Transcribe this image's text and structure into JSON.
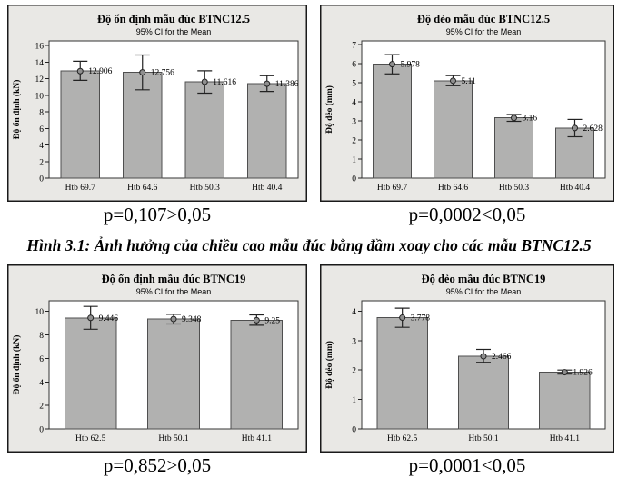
{
  "figure_caption": "Hình 3.1: Ảnh hưởng của chiều cao mẫu đúc bằng đầm xoay cho các mẫu BTNC12.5",
  "colors": {
    "panel_bg": "#e9e8e5",
    "panel_border": "#1a1a1a",
    "plot_bg": "#ffffff",
    "plot_border": "#333333",
    "bar_fill": "#b1b1b0",
    "bar_border": "#4f4f4f",
    "error_bar": "#222222",
    "marker_fill": "#8f8f8f",
    "text": "#000000"
  },
  "chart_data": [
    {
      "type": "bar",
      "title": "Độ ổn định mẫu đúc BTNC12.5",
      "subtitle": "95% CI for the Mean",
      "ylabel": "Độ ổn định (kN)",
      "xlabel": "",
      "categories": [
        "Htb 69.7",
        "Htb 64.6",
        "Htb 50.3",
        "Htb 40.4"
      ],
      "values": [
        12.906,
        12.756,
        11.616,
        11.386
      ],
      "value_labels": [
        "12.906",
        "12.756",
        "11.616",
        "11.386"
      ],
      "error_bars": "95% CI",
      "ci_low": [
        11.8,
        10.65,
        10.25,
        10.45
      ],
      "ci_high": [
        14.1,
        14.85,
        12.95,
        12.35
      ],
      "yticks": [
        0,
        2,
        4,
        6,
        8,
        10,
        12,
        14,
        16
      ],
      "ylim": [
        0,
        16.55
      ],
      "grid": false,
      "legend": "none",
      "p_caption": "p=0,107>0,05"
    },
    {
      "type": "bar",
      "title": "Độ dẻo mẫu đúc BTNC12.5",
      "subtitle": "95% CI for the Mean",
      "ylabel": "Độ dẻo (mm)",
      "xlabel": "",
      "categories": [
        "Htb 69.7",
        "Htb 64.6",
        "Htb 50.3",
        "Htb 40.4"
      ],
      "values": [
        5.978,
        5.11,
        3.16,
        2.628
      ],
      "value_labels": [
        "5.978",
        "5.11",
        "3.16",
        "2.628"
      ],
      "error_bars": "95% CI",
      "ci_low": [
        5.47,
        4.85,
        2.98,
        2.17
      ],
      "ci_high": [
        6.48,
        5.38,
        3.34,
        3.08
      ],
      "yticks": [
        0,
        1,
        2,
        3,
        4,
        5,
        6,
        7
      ],
      "ylim": [
        0,
        7.2
      ],
      "grid": false,
      "legend": "none",
      "p_caption": "p=0,0002<0,05"
    },
    {
      "type": "bar",
      "title": "Độ ổn định mẫu đúc BTNC19",
      "subtitle": "95% CI for the Mean",
      "ylabel": "Độ ổn định (kN)",
      "xlabel": "",
      "categories": [
        "Htb 62.5",
        "Htb 50.1",
        "Htb 41.1"
      ],
      "values": [
        9.446,
        9.348,
        9.25
      ],
      "value_labels": [
        "9.446",
        "9.348",
        "9.25"
      ],
      "error_bars": "95% CI",
      "ci_low": [
        8.48,
        8.93,
        8.82
      ],
      "ci_high": [
        10.42,
        9.75,
        9.7
      ],
      "yticks": [
        0,
        2,
        4,
        6,
        8,
        10
      ],
      "ylim": [
        0,
        10.9
      ],
      "grid": false,
      "legend": "none",
      "p_caption": "p=0,852>0,05"
    },
    {
      "type": "bar",
      "title": "Độ dẻo mẫu đúc BTNC19",
      "subtitle": "95% CI for the Mean",
      "ylabel": "Độ dẻo (mm)",
      "xlabel": "",
      "categories": [
        "Htb 62.5",
        "Htb 50.1",
        "Htb 41.1"
      ],
      "values": [
        3.778,
        2.466,
        1.926
      ],
      "value_labels": [
        "3.778",
        "2.466",
        "1.926"
      ],
      "error_bars": "95% CI",
      "ci_low": [
        3.45,
        2.26,
        1.86
      ],
      "ci_high": [
        4.1,
        2.7,
        2.0
      ],
      "yticks": [
        0,
        1,
        2,
        3,
        4
      ],
      "ylim": [
        0,
        4.35
      ],
      "grid": false,
      "legend": "none",
      "p_caption": "p=0,0001<0,05"
    }
  ]
}
